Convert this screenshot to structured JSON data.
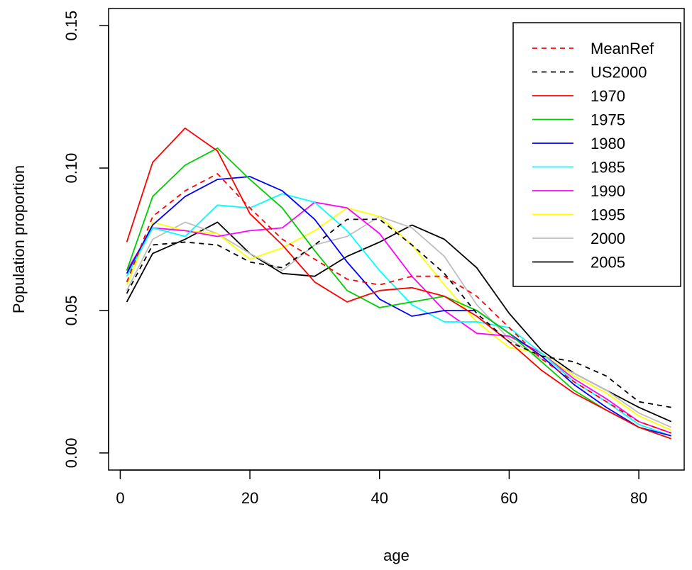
{
  "chart_data": {
    "type": "line",
    "xlabel": "age",
    "ylabel": "Population proportion",
    "xlim": [
      -1.8,
      87
    ],
    "ylim": [
      -0.006,
      0.156
    ],
    "xticks": [
      "0",
      "20",
      "40",
      "60",
      "80"
    ],
    "yticks": [
      "0.00",
      "0.05",
      "0.10",
      "0.15"
    ],
    "grid": false,
    "legend_position": "top-right",
    "x": [
      1,
      5,
      10,
      15,
      20,
      25,
      30,
      35,
      40,
      45,
      50,
      55,
      60,
      65,
      70,
      75,
      80,
      85
    ],
    "series": [
      {
        "name": "MeanRef",
        "color": "#ff0000",
        "dashed": true,
        "values": [
          0.06,
          0.083,
          0.092,
          0.098,
          0.086,
          0.075,
          0.068,
          0.061,
          0.059,
          0.062,
          0.062,
          0.055,
          0.044,
          0.033,
          0.025,
          0.018,
          0.011,
          0.007
        ]
      },
      {
        "name": "US2000",
        "color": "#000000",
        "dashed": true,
        "values": [
          0.056,
          0.073,
          0.074,
          0.073,
          0.067,
          0.065,
          0.073,
          0.082,
          0.082,
          0.073,
          0.063,
          0.049,
          0.039,
          0.034,
          0.032,
          0.027,
          0.018,
          0.016
        ]
      },
      {
        "name": "1970",
        "color": "#ff0000",
        "dashed": false,
        "values": [
          0.074,
          0.102,
          0.114,
          0.106,
          0.084,
          0.073,
          0.06,
          0.053,
          0.057,
          0.058,
          0.055,
          0.048,
          0.039,
          0.029,
          0.021,
          0.015,
          0.009,
          0.005
        ]
      },
      {
        "name": "1975",
        "color": "#00cd00",
        "dashed": false,
        "values": [
          0.064,
          0.09,
          0.101,
          0.107,
          0.096,
          0.086,
          0.071,
          0.057,
          0.051,
          0.053,
          0.055,
          0.05,
          0.042,
          0.032,
          0.022,
          0.015,
          0.009,
          0.005
        ]
      },
      {
        "name": "1980",
        "color": "#0000ff",
        "dashed": false,
        "values": [
          0.063,
          0.08,
          0.09,
          0.096,
          0.097,
          0.092,
          0.082,
          0.067,
          0.054,
          0.048,
          0.05,
          0.05,
          0.042,
          0.034,
          0.024,
          0.016,
          0.009,
          0.006
        ]
      },
      {
        "name": "1985",
        "color": "#00ffff",
        "dashed": false,
        "values": [
          0.062,
          0.079,
          0.076,
          0.087,
          0.086,
          0.091,
          0.088,
          0.078,
          0.064,
          0.052,
          0.046,
          0.046,
          0.044,
          0.035,
          0.025,
          0.018,
          0.01,
          0.006
        ]
      },
      {
        "name": "1990",
        "color": "#ff00ff",
        "dashed": false,
        "values": [
          0.064,
          0.079,
          0.078,
          0.076,
          0.078,
          0.079,
          0.088,
          0.086,
          0.077,
          0.062,
          0.05,
          0.042,
          0.041,
          0.035,
          0.026,
          0.019,
          0.011,
          0.007
        ]
      },
      {
        "name": "1995",
        "color": "#ffff00",
        "dashed": false,
        "values": [
          0.059,
          0.081,
          0.078,
          0.077,
          0.068,
          0.072,
          0.078,
          0.086,
          0.083,
          0.073,
          0.059,
          0.046,
          0.037,
          0.035,
          0.027,
          0.021,
          0.013,
          0.008
        ]
      },
      {
        "name": "2000",
        "color": "#bebebe",
        "dashed": false,
        "values": [
          0.057,
          0.075,
          0.081,
          0.077,
          0.07,
          0.064,
          0.073,
          0.076,
          0.083,
          0.079,
          0.069,
          0.052,
          0.04,
          0.033,
          0.028,
          0.022,
          0.014,
          0.009
        ]
      },
      {
        "name": "2005",
        "color": "#000000",
        "dashed": false,
        "values": [
          0.053,
          0.07,
          0.075,
          0.081,
          0.07,
          0.063,
          0.062,
          0.069,
          0.074,
          0.08,
          0.075,
          0.065,
          0.049,
          0.036,
          0.028,
          0.022,
          0.016,
          0.011
        ]
      }
    ]
  }
}
